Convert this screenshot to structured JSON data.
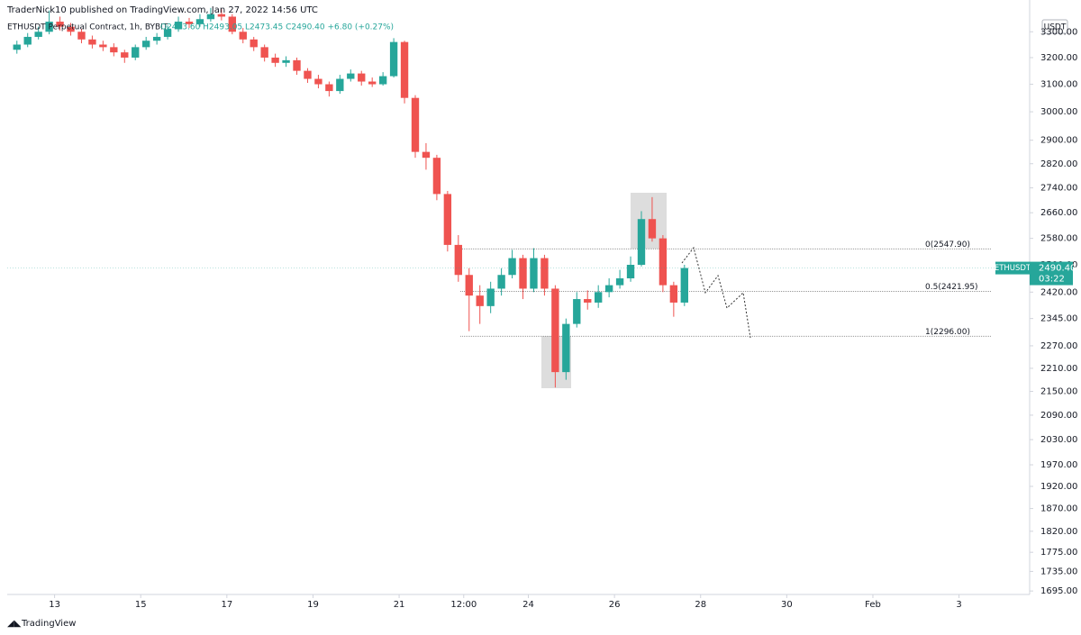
{
  "chart_data": {
    "type": "candlestick",
    "title": "TraderNick10 published on TradingView.com, Jan 27, 2022 14:56 UTC",
    "symbol": "ETHUSDT Perpetual Contract, 1h, BYBIT",
    "ohlc": "O2483.60 H2493.05 L2473.45 C2490.40 +6.80 (+0.27%)",
    "currency": "USDT",
    "price_tag": "ETHUSDT",
    "last_price": {
      "value": 2490.4,
      "label": "2490.40"
    },
    "countdown": "03:22",
    "footer": "TradingView",
    "log_scale": true,
    "grid": false,
    "up_color": "#26a69a",
    "down_color": "#ef5350",
    "x": [
      12,
      12.25,
      12.5,
      12.75,
      13,
      13.25,
      13.5,
      13.75,
      14,
      14.25,
      14.5,
      14.75,
      15,
      15.25,
      15.5,
      15.75,
      16,
      16.25,
      16.5,
      16.75,
      17,
      17.25,
      17.5,
      17.75,
      18,
      18.25,
      18.5,
      18.75,
      19,
      19.25,
      19.5,
      19.75,
      20,
      20.25,
      20.5,
      20.75,
      21,
      21.25,
      21.5,
      21.75,
      22,
      22.25,
      22.5,
      22.75,
      23,
      23.25,
      23.5,
      23.75,
      24,
      24.25,
      24.5,
      24.75,
      25,
      25.25,
      25.5,
      25.75,
      26,
      26.25,
      26.5,
      26.75,
      27,
      27.25,
      27.5
    ],
    "open": [
      3230,
      3250,
      3280,
      3300,
      3340,
      3320,
      3300,
      3270,
      3250,
      3240,
      3220,
      3200,
      3240,
      3265,
      3280,
      3310,
      3340,
      3330,
      3350,
      3370,
      3360,
      3300,
      3270,
      3240,
      3200,
      3180,
      3190,
      3150,
      3120,
      3100,
      3075,
      3120,
      3140,
      3110,
      3100,
      3130,
      3260,
      3050,
      2860,
      2840,
      2720,
      2560,
      2470,
      2410,
      2380,
      2430,
      2470,
      2520,
      2430,
      2520,
      2430,
      2200,
      2330,
      2400,
      2390,
      2420,
      2440,
      2460,
      2500,
      2640,
      2580,
      2440,
      2390
    ],
    "high": [
      3265,
      3295,
      3320,
      3385,
      3360,
      3335,
      3310,
      3285,
      3265,
      3255,
      3230,
      3250,
      3280,
      3295,
      3325,
      3360,
      3355,
      3370,
      3395,
      3390,
      3370,
      3315,
      3280,
      3250,
      3215,
      3205,
      3200,
      3160,
      3135,
      3110,
      3135,
      3155,
      3150,
      3125,
      3145,
      3275,
      3265,
      3060,
      2890,
      2850,
      2730,
      2590,
      2490,
      2440,
      2450,
      2490,
      2545,
      2530,
      2550,
      2530,
      2440,
      2345,
      2420,
      2425,
      2440,
      2460,
      2485,
      2525,
      2665,
      2710,
      2590,
      2450,
      2500
    ],
    "low": [
      3215,
      3240,
      3270,
      3290,
      3305,
      3285,
      3255,
      3235,
      3225,
      3205,
      3180,
      3190,
      3230,
      3250,
      3270,
      3300,
      3315,
      3320,
      3340,
      3345,
      3290,
      3255,
      3225,
      3185,
      3165,
      3165,
      3135,
      3105,
      3085,
      3055,
      3065,
      3110,
      3095,
      3090,
      3095,
      3125,
      3030,
      2840,
      2800,
      2700,
      2540,
      2450,
      2310,
      2330,
      2360,
      2410,
      2460,
      2400,
      2420,
      2410,
      2160,
      2180,
      2320,
      2370,
      2375,
      2405,
      2430,
      2450,
      2495,
      2570,
      2420,
      2350,
      2380
    ],
    "close": [
      3250,
      3280,
      3300,
      3340,
      3320,
      3300,
      3270,
      3250,
      3240,
      3220,
      3200,
      3240,
      3265,
      3280,
      3310,
      3340,
      3330,
      3350,
      3370,
      3360,
      3300,
      3270,
      3240,
      3200,
      3180,
      3190,
      3150,
      3120,
      3100,
      3075,
      3120,
      3140,
      3110,
      3100,
      3130,
      3260,
      3050,
      2860,
      2840,
      2720,
      2560,
      2470,
      2410,
      2380,
      2430,
      2470,
      2520,
      2430,
      2520,
      2430,
      2200,
      2330,
      2400,
      2390,
      2420,
      2440,
      2460,
      2500,
      2640,
      2580,
      2440,
      2390,
      2490.4
    ],
    "xlim": [
      11.9,
      35.64
    ],
    "xticks": [
      13,
      15,
      17,
      19,
      21,
      {
        "value": 22.5,
        "label": "12:00"
      },
      24,
      26,
      28,
      30,
      {
        "value": 32,
        "label": "Feb"
      },
      {
        "value": 34,
        "label": "3"
      }
    ],
    "ylim": [
      1688,
      3398
    ],
    "yticks": [
      {
        "value": 3300,
        "label": "3300.00"
      },
      {
        "value": 3200,
        "label": "3200.00"
      },
      {
        "value": 3100,
        "label": "3100.00"
      },
      {
        "value": 3000,
        "label": "3000.00"
      },
      {
        "value": 2900,
        "label": "2900.00"
      },
      {
        "value": 2820,
        "label": "2820.00"
      },
      {
        "value": 2740,
        "label": "2740.00"
      },
      {
        "value": 2660,
        "label": "2660.00"
      },
      {
        "value": 2580,
        "label": "2580.00"
      },
      {
        "value": 2500,
        "label": "2500.00"
      },
      {
        "value": 2420,
        "label": "2420.00"
      },
      {
        "value": 2345,
        "label": "2345.00"
      },
      {
        "value": 2270,
        "label": "2270.00"
      },
      {
        "value": 2210,
        "label": "2210.00"
      },
      {
        "value": 2150,
        "label": "2150.00"
      },
      {
        "value": 2090,
        "label": "2090.00"
      },
      {
        "value": 2030,
        "label": "2030.00"
      },
      {
        "value": 1970,
        "label": "1970.00"
      },
      {
        "value": 1920,
        "label": "1920.00"
      },
      {
        "value": 1870,
        "label": "1870.00"
      },
      {
        "value": 1820,
        "label": "1820.00"
      },
      {
        "value": 1775,
        "label": "1775.00"
      },
      {
        "value": 1735,
        "label": "1735.00"
      },
      {
        "value": 1695,
        "label": "1695.00"
      }
    ],
    "fib_levels": [
      {
        "value": 2547.9,
        "label": "0(2547.90)"
      },
      {
        "value": 2421.95,
        "label": "0.5(2421.95)"
      },
      {
        "value": 2296,
        "label": "1(2296.00)"
      }
    ]
  }
}
